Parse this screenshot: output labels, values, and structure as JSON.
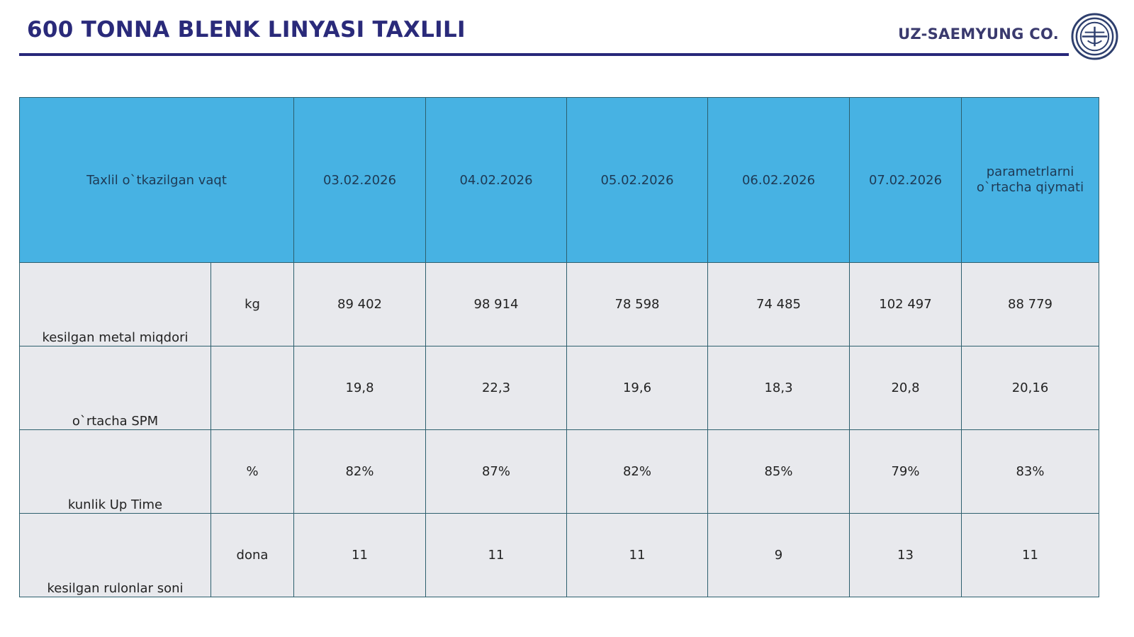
{
  "header": {
    "title": "600 TONNA BLENK LINYASI TAXLILI",
    "company": "UZ-SAEMYUNG CO.",
    "logo_icon": "company-emblem-icon"
  },
  "table": {
    "corner_label": "Taxlil o`tkazilgan vaqt",
    "dates": [
      "03.02.2026",
      "04.02.2026",
      "05.02.2026",
      "06.02.2026",
      "07.02.2026"
    ],
    "average_label": "parametrlarni o`rtacha qiymati",
    "rows": [
      {
        "name": "kesilgan metal miqdori",
        "unit": "kg",
        "values": [
          "89 402",
          "98 914",
          "78 598",
          "74 485",
          "102 497"
        ],
        "average": "88 779"
      },
      {
        "name": "o`rtacha SPM",
        "unit": "",
        "values": [
          "19,8",
          "22,3",
          "19,6",
          "18,3",
          "20,8"
        ],
        "average": "20,16"
      },
      {
        "name": "kunlik Up Time",
        "unit": "%",
        "values": [
          "82%",
          "87%",
          "82%",
          "85%",
          "79%"
        ],
        "average": "83%"
      },
      {
        "name": "kesilgan rulonlar soni",
        "unit": "dona",
        "values": [
          "11",
          "11",
          "11",
          "9",
          "13"
        ],
        "average": "11"
      }
    ]
  },
  "colors": {
    "title": "#2a2a7a",
    "rule": "#27277a",
    "header_fill": "#47b2e3",
    "row_fill": "#e8e9ed",
    "border": "#2d5f6e"
  }
}
